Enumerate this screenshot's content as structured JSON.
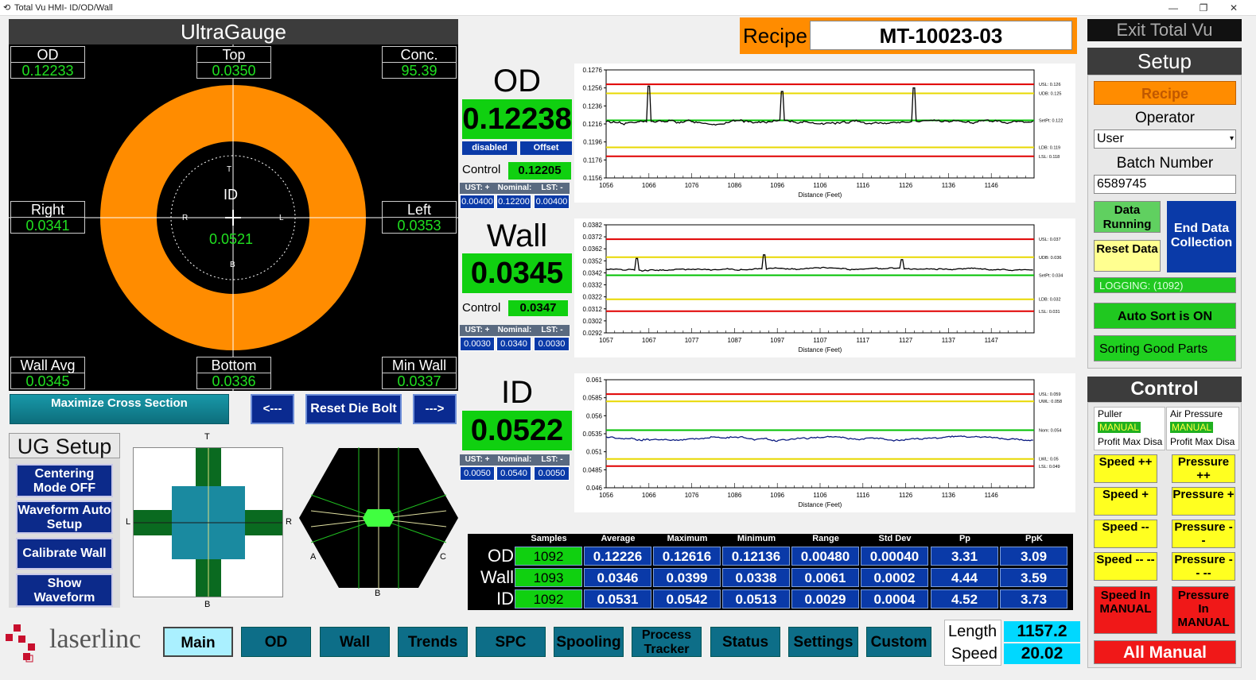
{
  "window": {
    "title": "Total Vu HMI- ID/OD/Wall"
  },
  "ultragauge": {
    "title": "UltraGauge",
    "od": {
      "label": "OD",
      "value": "0.12233"
    },
    "top": {
      "label": "Top",
      "value": "0.0350"
    },
    "conc": {
      "label": "Conc.",
      "value": "95.39"
    },
    "right": {
      "label": "Right",
      "value": "0.0341"
    },
    "left": {
      "label": "Left",
      "value": "0.0353"
    },
    "wall_avg": {
      "label": "Wall Avg",
      "value": "0.0345"
    },
    "bottom": {
      "label": "Bottom",
      "value": "0.0336"
    },
    "min_wall": {
      "label": "Min Wall",
      "value": "0.0337"
    },
    "center": {
      "id_label": "ID",
      "id_value": "0.0521",
      "t": "T",
      "b": "B",
      "r": "R",
      "l": "L"
    },
    "ring_color": "#ff8c00"
  },
  "buttons": {
    "maximize": "Maximize Cross Section",
    "prev": "<---",
    "reset_die_bolt": "Reset Die Bolt",
    "next": "--->"
  },
  "ug_setup": {
    "title": "UG Setup",
    "centering": "Centering Mode OFF",
    "waveform_setup": "Waveform Auto Setup",
    "calibrate": "Calibrate Wall",
    "show_waveform": "Show Waveform"
  },
  "die_diagram": {
    "t": "T",
    "b": "B",
    "l": "L",
    "r": "R"
  },
  "hex_diagram": {
    "a": "A",
    "b": "B",
    "c": "C"
  },
  "recipe": {
    "label": "Recipe",
    "value": "MT-10023-03"
  },
  "od_panel": {
    "label": "OD",
    "value": "0.12238",
    "disabled": "disabled",
    "offset": "Offset",
    "control_label": "Control",
    "control_value": "0.12205",
    "ust_hdr": "UST: +",
    "nom_hdr": "Nominal:",
    "lst_hdr": "LST: -",
    "ust": "0.00400",
    "nom": "0.12200",
    "lst": "0.00400"
  },
  "wall_panel": {
    "label": "Wall",
    "value": "0.0345",
    "control_label": "Control",
    "control_value": "0.0347",
    "ust_hdr": "UST: +",
    "nom_hdr": "Nominal:",
    "lst_hdr": "LST: -",
    "ust": "0.0030",
    "nom": "0.0340",
    "lst": "0.0030"
  },
  "id_panel": {
    "label": "ID",
    "value": "0.0522",
    "ust_hdr": "UST: +",
    "nom_hdr": "Nominal:",
    "lst_hdr": "LST: -",
    "ust": "0.0050",
    "nom": "0.0540",
    "lst": "0.0050"
  },
  "chart_data": [
    {
      "type": "line",
      "xlabel": "Distance (Feet)",
      "x_ticks": [
        "1056",
        "1066",
        "1076",
        "1086",
        "1096",
        "1106",
        "1116",
        "1126",
        "1136",
        "1146"
      ],
      "y_ticks": [
        "0.1276",
        "0.1256",
        "0.1236",
        "0.1216",
        "0.1196",
        "0.1176",
        "0.1156"
      ],
      "ylim": [
        0.1156,
        0.1276
      ],
      "limits": [
        {
          "name": "USL: 0.126",
          "value": 0.126,
          "color": "#e00000"
        },
        {
          "name": "UDB: 0.125",
          "value": 0.125,
          "color": "#e8d800"
        },
        {
          "name": "SetPt: 0.122",
          "value": 0.122,
          "color": "#00c000"
        },
        {
          "name": "LDB: 0.119",
          "value": 0.119,
          "color": "#e8d800"
        },
        {
          "name": "LSL: 0.118",
          "value": 0.118,
          "color": "#e00000"
        }
      ],
      "series": [
        {
          "base": 0.1218,
          "noise": 0.0002,
          "spikes": [
            {
              "x": 1066,
              "v": 0.1258
            },
            {
              "x": 1097,
              "v": 0.1252
            },
            {
              "x": 1128,
              "v": 0.1256
            }
          ]
        }
      ],
      "xlim": [
        1056,
        1156
      ]
    },
    {
      "type": "line",
      "xlabel": "Distance (Feet)",
      "x_ticks": [
        "1057",
        "1067",
        "1077",
        "1087",
        "1097",
        "1107",
        "1117",
        "1127",
        "1137",
        "1147"
      ],
      "y_ticks": [
        "0.0382",
        "0.0372",
        "0.0362",
        "0.0352",
        "0.0342",
        "0.0332",
        "0.0322",
        "0.0312",
        "0.0302",
        "0.0292"
      ],
      "ylim": [
        0.0292,
        0.0382
      ],
      "limits": [
        {
          "name": "USL: 0.037",
          "value": 0.037,
          "color": "#e00000"
        },
        {
          "name": "UDB: 0.036",
          "value": 0.0355,
          "color": "#e8d800"
        },
        {
          "name": "SetPt: 0.034",
          "value": 0.034,
          "color": "#00c000"
        },
        {
          "name": "LDB: 0.032",
          "value": 0.032,
          "color": "#e8d800"
        },
        {
          "name": "LSL: 0.031",
          "value": 0.031,
          "color": "#e00000"
        }
      ],
      "series": [
        {
          "base": 0.0345,
          "noise": 8e-05,
          "spikes": [
            {
              "x": 1064,
              "v": 0.0354
            },
            {
              "x": 1094,
              "v": 0.0357
            },
            {
              "x": 1126,
              "v": 0.0353
            }
          ]
        }
      ],
      "xlim": [
        1057,
        1157
      ]
    },
    {
      "type": "line",
      "xlabel": "Distance (Feet)",
      "x_ticks": [
        "1056",
        "1066",
        "1076",
        "1086",
        "1096",
        "1106",
        "1116",
        "1126",
        "1136",
        "1146"
      ],
      "y_ticks": [
        "0.061",
        "0.0585",
        "0.056",
        "0.0535",
        "0.051",
        "0.0485",
        "0.046"
      ],
      "ylim": [
        0.046,
        0.061
      ],
      "limits": [
        {
          "name": "USL: 0.059",
          "value": 0.059,
          "color": "#e00000"
        },
        {
          "name": "UWL: 0.058",
          "value": 0.058,
          "color": "#e8d800"
        },
        {
          "name": "Nom: 0.054",
          "value": 0.054,
          "color": "#00c000"
        },
        {
          "name": "LWL: 0.05",
          "value": 0.05,
          "color": "#e8d800"
        },
        {
          "name": "LSL: 0.049",
          "value": 0.049,
          "color": "#e00000"
        }
      ],
      "series": [
        {
          "base": 0.0529,
          "noise": 0.00025,
          "spikes": []
        }
      ],
      "xlim": [
        1056,
        1156
      ],
      "line_color": "#0a1a80"
    }
  ],
  "stats": {
    "headers": [
      "Samples",
      "Average",
      "Maximum",
      "Minimum",
      "Range",
      "Std Dev",
      "Pp",
      "PpK"
    ],
    "rows": [
      {
        "label": "OD",
        "cells": [
          "1092",
          "0.12226",
          "0.12616",
          "0.12136",
          "0.00480",
          "0.00040",
          "3.31",
          "3.09"
        ]
      },
      {
        "label": "Wall",
        "cells": [
          "1093",
          "0.0346",
          "0.0399",
          "0.0338",
          "0.0061",
          "0.0002",
          "4.44",
          "3.59"
        ]
      },
      {
        "label": "ID",
        "cells": [
          "1092",
          "0.0531",
          "0.0542",
          "0.0513",
          "0.0029",
          "0.0004",
          "4.52",
          "3.73"
        ]
      }
    ]
  },
  "right_panel": {
    "exit": "Exit Total Vu",
    "setup": "Setup",
    "recipe_btn": "Recipe",
    "operator_label": "Operator",
    "operator_value": "User",
    "batch_label": "Batch Number",
    "batch_value": "6589745",
    "data_running": "Data Running",
    "end_data": "End Data Collection",
    "reset_data": "Reset Data",
    "logging": "LOGGING: (1092)",
    "auto_sort": "Auto Sort is ON",
    "sorting": "Sorting Good Parts",
    "control": "Control",
    "puller_label": "Puller",
    "puller_mode": "MANUAL",
    "puller_sub": "Profit Max Disa",
    "air_label": "Air Pressure",
    "air_mode": "MANUAL",
    "air_sub": "Profit Max Disa",
    "speed_pp": "Speed ++",
    "pressure_pp": "Pressure ++",
    "speed_p": "Speed +",
    "pressure_p": "Pressure +",
    "speed_m": "Speed --",
    "pressure_m": "Pressure --",
    "speed_mm": "Speed -- --",
    "pressure_mm": "Pressure -- --",
    "speed_manual": "Speed In MANUAL",
    "pressure_manual": "Pressure In MANUAL",
    "all_manual": "All Manual"
  },
  "footer": {
    "logo": "laserlinc",
    "nav": [
      "Main",
      "OD",
      "Wall",
      "Trends",
      "SPC",
      "Spooling",
      "Process Tracker",
      "Status",
      "Settings",
      "Custom"
    ],
    "length_label": "Length",
    "length_value": "1157.2",
    "speed_label": "Speed",
    "speed_value": "20.02"
  }
}
